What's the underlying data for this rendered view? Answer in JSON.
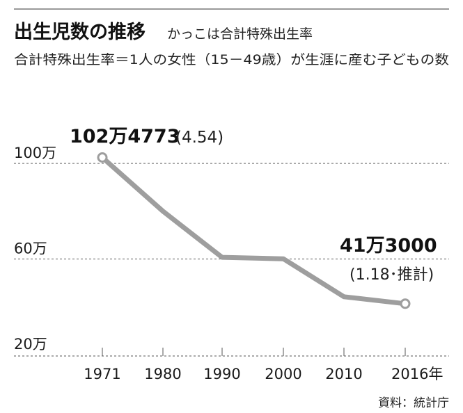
{
  "chart_data": {
    "type": "line",
    "title": "出生児数の推移",
    "subtitle": "かっこは合計特殊出生率",
    "note": "合計特殊出生率＝1人の女性（15－49歳）が生涯に産む子どもの数",
    "x": [
      1971,
      1980,
      1990,
      2000,
      2010,
      2016
    ],
    "x_tick_labels": [
      "1971",
      "1980",
      "1990",
      "2000",
      "2010",
      "2016年"
    ],
    "series": [
      {
        "values": [
          1024773,
          800000,
          607000,
          601000,
          442000,
          413000
        ]
      }
    ],
    "y_ticks": [
      1000000,
      600000,
      200000
    ],
    "y_tick_labels": [
      "100万",
      "60万",
      "20万"
    ],
    "ylim": [
      170000,
      1150000
    ],
    "grid": true,
    "annotations": {
      "start_value": "102万4773",
      "start_rate": "(4.54)",
      "end_value": "41万3000",
      "end_rate": "(1.18･推計)"
    },
    "source": "資料：統計庁",
    "colors": {
      "line": "#9e9e9e",
      "grid": "#555555",
      "text": "#1a1a1a"
    }
  }
}
